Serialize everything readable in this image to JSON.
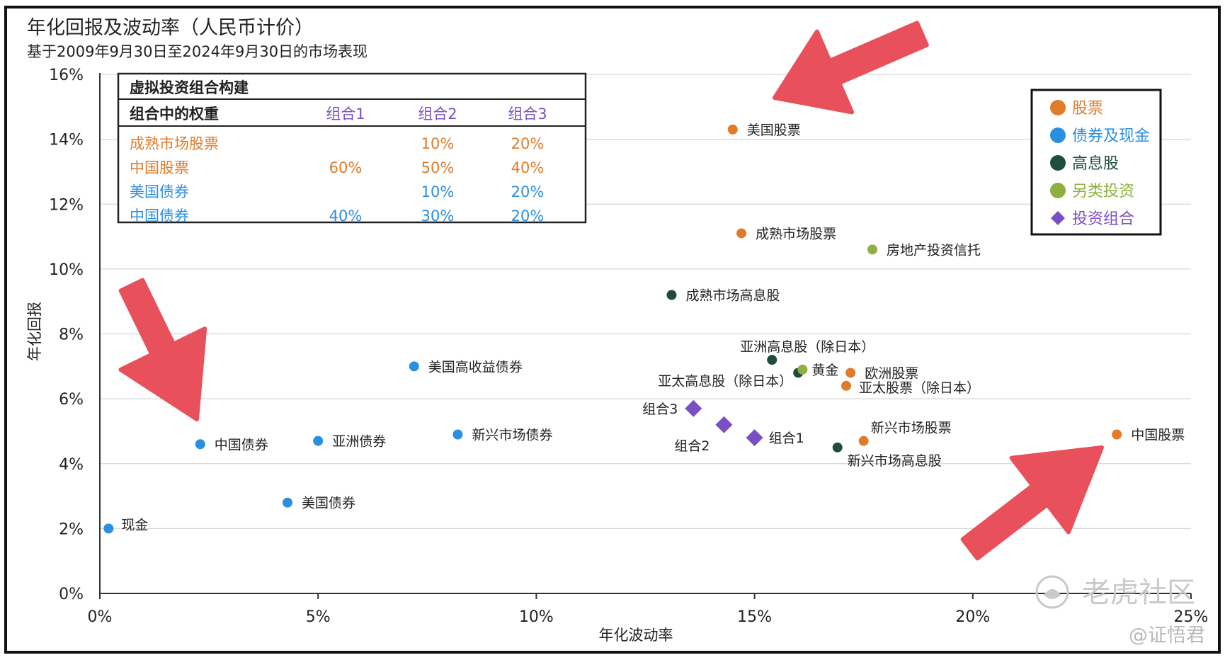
{
  "chart_data": {
    "type": "scatter",
    "title": "年化回报及波动率（人民币计价）",
    "subtitle": "基于2009年9月30日至2024年9月30日的市场表现",
    "xlabel": "年化波动率",
    "ylabel": "年化回报",
    "xlim": [
      0,
      25
    ],
    "ylim": [
      0,
      16
    ],
    "x_ticks": [
      "0%",
      "5%",
      "10%",
      "15%",
      "20%",
      "25%"
    ],
    "y_ticks": [
      "0%",
      "2%",
      "4%",
      "6%",
      "8%",
      "10%",
      "12%",
      "14%",
      "16%"
    ],
    "grid": "horizontal",
    "legend_position": "top-right",
    "legend": [
      {
        "name": "股票",
        "color": "#e07b2a",
        "marker": "circle"
      },
      {
        "name": "债券及现金",
        "color": "#2b8fe0",
        "marker": "circle"
      },
      {
        "name": "高息股",
        "color": "#1e4d3a",
        "marker": "circle"
      },
      {
        "name": "另类投资",
        "color": "#8fb03e",
        "marker": "circle"
      },
      {
        "name": "投资组合",
        "color": "#7b4fc4",
        "marker": "diamond"
      }
    ],
    "points": [
      {
        "label": "美国股票",
        "x": 14.5,
        "y": 14.3,
        "category": "股票"
      },
      {
        "label": "成熟市场股票",
        "x": 14.7,
        "y": 11.1,
        "category": "股票"
      },
      {
        "label": "欧洲股票",
        "x": 17.2,
        "y": 6.8,
        "category": "股票"
      },
      {
        "label": "亚太股票（除日本）",
        "x": 17.1,
        "y": 6.4,
        "category": "股票"
      },
      {
        "label": "新兴市场股票",
        "x": 17.5,
        "y": 4.7,
        "category": "股票"
      },
      {
        "label": "中国股票",
        "x": 23.3,
        "y": 4.9,
        "category": "股票"
      },
      {
        "label": "现金",
        "x": 0.2,
        "y": 2.0,
        "category": "债券及现金"
      },
      {
        "label": "美国债券",
        "x": 4.3,
        "y": 2.8,
        "category": "债券及现金"
      },
      {
        "label": "中国债券",
        "x": 2.3,
        "y": 4.6,
        "category": "债券及现金"
      },
      {
        "label": "亚洲债券",
        "x": 5.0,
        "y": 4.7,
        "category": "债券及现金"
      },
      {
        "label": "新兴市场债券",
        "x": 8.2,
        "y": 4.9,
        "category": "债券及现金"
      },
      {
        "label": "美国高收益债券",
        "x": 7.2,
        "y": 7.0,
        "category": "债券及现金"
      },
      {
        "label": "成熟市场高息股",
        "x": 13.1,
        "y": 9.2,
        "category": "高息股"
      },
      {
        "label": "亚洲高息股（除日本）",
        "x": 15.4,
        "y": 7.2,
        "category": "高息股"
      },
      {
        "label": "亚太高息股（除日本）",
        "x": 16.0,
        "y": 6.8,
        "category": "高息股"
      },
      {
        "label": "新兴市场高息股",
        "x": 16.9,
        "y": 4.5,
        "category": "高息股"
      },
      {
        "label": "房地产投资信托",
        "x": 17.7,
        "y": 10.6,
        "category": "另类投资"
      },
      {
        "label": "黄金",
        "x": 16.1,
        "y": 6.9,
        "category": "另类投资"
      },
      {
        "label": "组合3",
        "x": 13.6,
        "y": 5.7,
        "category": "投资组合"
      },
      {
        "label": "组合2",
        "x": 14.3,
        "y": 5.2,
        "category": "投资组合"
      },
      {
        "label": "组合1",
        "x": 15.0,
        "y": 4.8,
        "category": "投资组合"
      }
    ],
    "table": {
      "title": "虚拟投资组合构建",
      "header": [
        "组合中的权重",
        "组合1",
        "组合2",
        "组合3"
      ],
      "rows": [
        {
          "label": "成熟市场股票",
          "values": [
            "",
            "10%",
            "20%"
          ],
          "category": "股票"
        },
        {
          "label": "中国股票",
          "values": [
            "60%",
            "50%",
            "40%"
          ],
          "category": "股票"
        },
        {
          "label": "美国债券",
          "values": [
            "",
            "10%",
            "20%"
          ],
          "category": "债券及现金"
        },
        {
          "label": "中国债券",
          "values": [
            "40%",
            "30%",
            "20%"
          ],
          "category": "债券及现金"
        }
      ]
    }
  },
  "arrow_color": "#e8505b",
  "watermark": {
    "brand": "老虎社区",
    "author": "@证悟君"
  }
}
